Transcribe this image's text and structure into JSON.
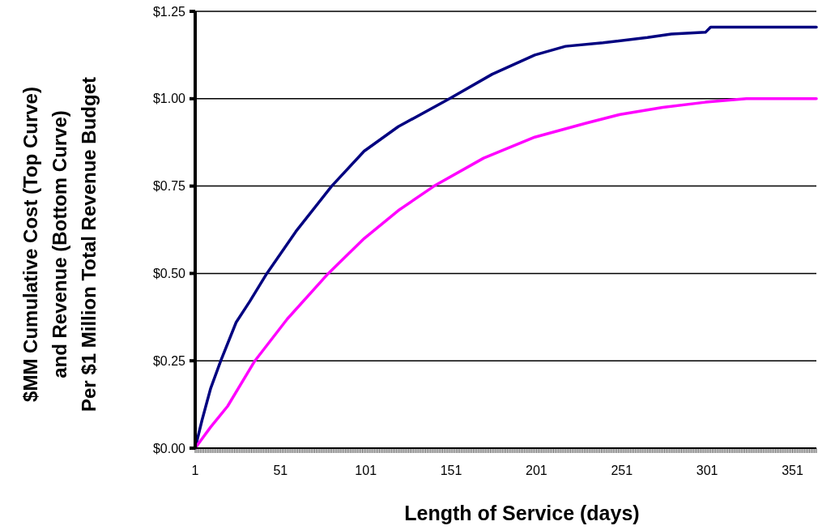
{
  "chart_data": {
    "type": "line",
    "xlabel": "Length of Service (days)",
    "ylabel": "$MM Cumulative Cost (Top Curve)\nand Revenue (Bottom Curve)\nPer $1 Million Total Revenue Budget",
    "xlim": [
      1,
      365
    ],
    "ylim": [
      0,
      1.25
    ],
    "yticks": [
      {
        "value": 0,
        "label": "$0.00"
      },
      {
        "value": 0.25,
        "label": "$0.25"
      },
      {
        "value": 0.5,
        "label": "$0.50"
      },
      {
        "value": 0.75,
        "label": "$0.75"
      },
      {
        "value": 1,
        "label": "$1.00"
      },
      {
        "value": 1.25,
        "label": "$1.25"
      }
    ],
    "xticks": [
      1,
      51,
      101,
      151,
      201,
      251,
      301,
      351
    ],
    "grid": "y",
    "marker": "none",
    "line_style": "solid",
    "series": [
      {
        "color": "#000080",
        "x": [
          1,
          5,
          10,
          16,
          25,
          33,
          43,
          60,
          81,
          100,
          120,
          150,
          175,
          200,
          218,
          240,
          266,
          280,
          300,
          303,
          365
        ],
        "values": [
          0,
          0.08,
          0.17,
          0.25,
          0.36,
          0.42,
          0.5,
          0.62,
          0.75,
          0.85,
          0.92,
          1.0,
          1.07,
          1.125,
          1.15,
          1.16,
          1.175,
          1.185,
          1.19,
          1.205,
          1.205
        ]
      },
      {
        "color": "#ff00ff",
        "x": [
          1,
          10,
          20,
          36,
          55,
          79,
          100,
          120,
          141,
          170,
          200,
          230,
          250,
          275,
          300,
          324,
          330,
          365
        ],
        "values": [
          0,
          0.06,
          0.12,
          0.25,
          0.37,
          0.5,
          0.6,
          0.68,
          0.75,
          0.83,
          0.89,
          0.93,
          0.955,
          0.975,
          0.99,
          1.0,
          1.0,
          1.0
        ]
      }
    ]
  }
}
